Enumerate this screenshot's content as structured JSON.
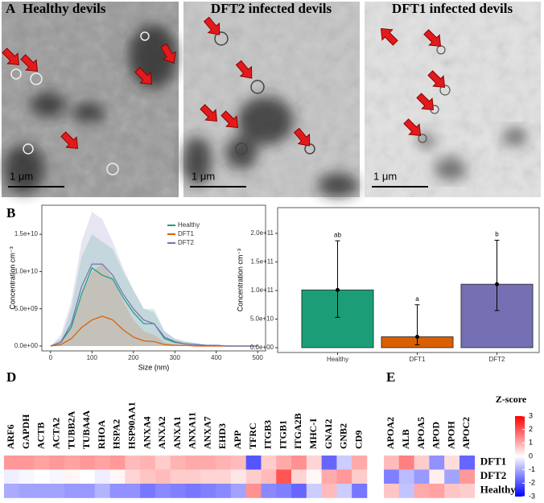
{
  "images": [
    {
      "panel": "A",
      "title": "Healthy devils",
      "scale_bar": "1 μm"
    },
    {
      "title": "DFT2 infected devils",
      "scale_bar": "1 μm"
    },
    {
      "title": "DFT1 infected devils",
      "scale_bar": "1 μm"
    }
  ],
  "chart_data": [
    {
      "panel": "B",
      "type": "line",
      "x": [
        0,
        25,
        50,
        75,
        100,
        125,
        150,
        175,
        200,
        225,
        250,
        275,
        300,
        325,
        350,
        375,
        400,
        425,
        450,
        475,
        500
      ],
      "xlim": [
        -21,
        519
      ],
      "xticks": [
        0,
        100,
        200,
        300,
        400,
        500
      ],
      "ylim": [
        -650000000.0,
        18900000000.0
      ],
      "yticks": [
        {
          "value": 0,
          "label": "0.0e+00"
        },
        {
          "value": 5000000000.0,
          "label": "5.0e+09"
        },
        {
          "value": 10000000000.0,
          "label": "1.0e+10"
        },
        {
          "value": 15000000000.0,
          "label": "1.5e+10"
        }
      ],
      "xlabel": "Size (nm)",
      "ylabel": "Concentration cm⁻³",
      "legend": "top-right",
      "series": [
        {
          "name": "Healthy",
          "color": "#1b9e77",
          "values": [
            0,
            500000000.0,
            2500000000.0,
            7000000000.0,
            10500000000.0,
            9500000000.0,
            9000000000.0,
            6500000000.0,
            4500000000.0,
            3000000000.0,
            3000000000.0,
            1000000000.0,
            500000000.0,
            300000000.0,
            200000000.0,
            100000000.0,
            100000000.0,
            0,
            0,
            0,
            0
          ],
          "upper": [
            0,
            1000000000.0,
            5000000000.0,
            12000000000.0,
            15000000000.0,
            14000000000.0,
            13000000000.0,
            10000000000.0,
            7500000000.0,
            5000000000.0,
            5000000000.0,
            2000000000.0,
            1000000000.0,
            600000000.0,
            400000000.0,
            200000000.0,
            200000000.0,
            100000000.0,
            0,
            0,
            0
          ]
        },
        {
          "name": "DFT1",
          "color": "#d95f02",
          "values": [
            0,
            200000000.0,
            1000000000.0,
            2500000000.0,
            3500000000.0,
            4000000000.0,
            3500000000.0,
            2200000000.0,
            1200000000.0,
            700000000.0,
            600000000.0,
            200000000.0,
            100000000.0,
            100000000.0,
            0,
            0,
            0,
            0,
            0,
            0,
            0
          ],
          "upper": [
            0,
            800000000.0,
            3000000000.0,
            7000000000.0,
            10000000000.0,
            11000000000.0,
            9000000000.0,
            6000000000.0,
            3500000000.0,
            2000000000.0,
            1500000000.0,
            500000000.0,
            300000000.0,
            200000000.0,
            100000000.0,
            0,
            0,
            0,
            0,
            0,
            0
          ]
        },
        {
          "name": "DFT2",
          "color": "#7570b3",
          "values": [
            0,
            500000000.0,
            3000000000.0,
            8000000000.0,
            11000000000.0,
            11000000000.0,
            9500000000.0,
            7000000000.0,
            5000000000.0,
            3500000000.0,
            3000000000.0,
            1200000000.0,
            600000000.0,
            300000000.0,
            200000000.0,
            100000000.0,
            100000000.0,
            0,
            0,
            0,
            0
          ],
          "upper": [
            0,
            1500000000.0,
            6000000000.0,
            14000000000.0,
            18000000000.0,
            17000000000.0,
            14000000000.0,
            10500000000.0,
            7500000000.0,
            5000000000.0,
            4500000000.0,
            2000000000.0,
            1000000000.0,
            600000000.0,
            400000000.0,
            200000000.0,
            200000000.0,
            100000000.0,
            0,
            0,
            0
          ]
        }
      ]
    },
    {
      "panel": "C",
      "type": "bar",
      "categories": [
        "Healthy",
        "DFT1",
        "DFT2"
      ],
      "values": [
        101000000000.0,
        19000000000.0,
        111000000000.0
      ],
      "lower": [
        53000000000.0,
        5000000000.0,
        65000000000.0
      ],
      "upper": [
        187000000000.0,
        75000000000.0,
        188000000000.0
      ],
      "annotations": [
        "ab",
        "a",
        "b"
      ],
      "colors": [
        "#1b9e77",
        "#d95f02",
        "#7570b3"
      ],
      "ylim": [
        -8500000000.0,
        245000000000.0
      ],
      "yticks": [
        {
          "value": 0,
          "label": "0.0e+00"
        },
        {
          "value": 50000000000.0,
          "label": "5.0e+10"
        },
        {
          "value": 100000000000.0,
          "label": "1.0e+11"
        },
        {
          "value": 150000000000.0,
          "label": "1.5e+11"
        },
        {
          "value": 200000000000.0,
          "label": "2.0e+11"
        }
      ],
      "ylabel": "Concentration cm⁻³"
    },
    {
      "panel": "D",
      "type": "heatmap",
      "x": [
        "ARF6",
        "GAPDH",
        "ACTB",
        "ACTA2",
        "TUBB2A",
        "TUBA4A",
        "RHOA",
        "HSPA2",
        "HSP90AA1",
        "ANXA4",
        "ANXA2",
        "ANXA1",
        "ANXA11",
        "ANXA7",
        "EHD3",
        "APP",
        "TFRC",
        "ITGB3",
        "ITGB1",
        "ITGA2B",
        "MHC-I",
        "GNAI2",
        "GNB2",
        "CD9"
      ],
      "z": [
        [
          1.2,
          1.2,
          1.1,
          1.2,
          1.1,
          1.2,
          1.1,
          1.2,
          0.8,
          0.9,
          0.6,
          0.9,
          1.0,
          1.0,
          0.9,
          0.8,
          -2.0,
          0.6,
          1.0,
          1.3,
          0.5,
          -1.8,
          -0.6,
          1.0
        ],
        [
          -0.2,
          -0.1,
          0.0,
          -0.1,
          0.1,
          0.0,
          -0.2,
          0.1,
          0.5,
          0.7,
          0.8,
          0.6,
          0.6,
          0.5,
          0.5,
          0.3,
          0.6,
          0.8,
          2.0,
          0.5,
          0.1,
          1.0,
          1.2,
          0.6
        ],
        [
          -1.0,
          -1.1,
          -1.1,
          -1.1,
          -1.2,
          -1.2,
          -0.9,
          -1.3,
          -1.3,
          -1.6,
          -1.4,
          -1.5,
          -1.6,
          -1.5,
          -1.4,
          -1.1,
          1.3,
          -1.4,
          -1.5,
          -1.8,
          -0.6,
          0.8,
          -0.6,
          -1.6
        ]
      ],
      "zlim": [
        -3,
        3
      ],
      "colorscale": [
        "#0000ff",
        "#ffffff",
        "#ff0000"
      ]
    },
    {
      "panel": "E",
      "type": "heatmap",
      "x": [
        "APOA2",
        "ALB",
        "APOA5",
        "APOD",
        "APOH",
        "APOC2"
      ],
      "y": [
        "DFT1",
        "DFT2",
        "Healthy"
      ],
      "z": [
        [
          0.8,
          1.5,
          0.6,
          -1.3,
          0.4,
          -1.8
        ],
        [
          -1.5,
          -0.8,
          -1.2,
          0.2,
          -1.1,
          1.2
        ],
        [
          0.7,
          -0.7,
          1.0,
          1.1,
          0.7,
          0.6
        ]
      ],
      "zlim": [
        -3,
        3
      ],
      "colorscale": [
        "#0000ff",
        "#ffffff",
        "#ff0000"
      ],
      "colorbar_title": "Z-score",
      "zticks": [
        3,
        2,
        1,
        0,
        -1,
        -2,
        -3
      ]
    }
  ]
}
